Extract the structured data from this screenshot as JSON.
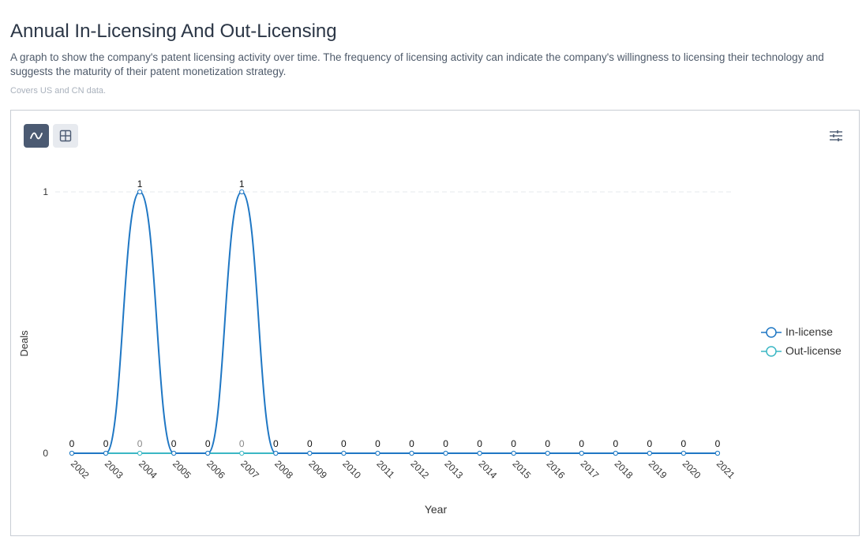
{
  "header": {
    "title": "Annual In-Licensing And Out-Licensing",
    "description": "A graph to show the company's patent licensing activity over time. The frequency of licensing activity can indicate the company's willingness to licensing their technology and suggests the maturity of their patent monetization strategy.",
    "note": "Covers US and CN data."
  },
  "toolbar": {
    "line_view_icon": "line-chart-icon",
    "table_view_icon": "table-grid-icon",
    "settings_icon": "filter-settings-icon"
  },
  "colors": {
    "in_license": "#1f77c4",
    "out_license": "#3bb7c4",
    "active_button": "#4b5a72",
    "inactive_button": "#e7eaef"
  },
  "chart_data": {
    "type": "line",
    "xlabel": "Year",
    "ylabel": "Deals",
    "ylim": [
      0,
      1
    ],
    "yticks": [
      "0",
      "1"
    ],
    "categories": [
      "2002",
      "2003",
      "2004",
      "2005",
      "2006",
      "2007",
      "2008",
      "2009",
      "2010",
      "2011",
      "2012",
      "2013",
      "2014",
      "2015",
      "2016",
      "2017",
      "2018",
      "2019",
      "2020",
      "2021"
    ],
    "series": [
      {
        "name": "In-license",
        "color": "#1f77c4",
        "values": [
          0,
          0,
          1,
          0,
          0,
          1,
          0,
          0,
          0,
          0,
          0,
          0,
          0,
          0,
          0,
          0,
          0,
          0,
          0,
          0
        ]
      },
      {
        "name": "Out-license",
        "color": "#3bb7c4",
        "values": [
          0,
          0,
          0,
          0,
          0,
          0,
          0,
          0,
          0,
          0,
          0,
          0,
          0,
          0,
          0,
          0,
          0,
          0,
          0,
          0
        ]
      }
    ],
    "smooth": true,
    "data_labels": true,
    "grid": "horizontal dashed",
    "legend_position": "right"
  }
}
